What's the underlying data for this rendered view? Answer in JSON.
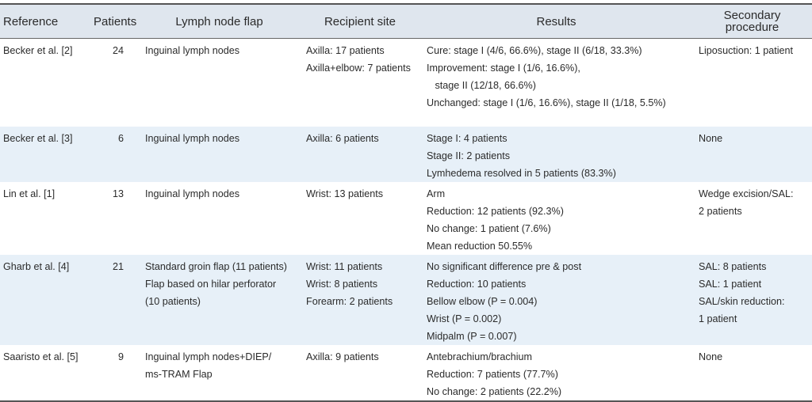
{
  "table": {
    "columns": [
      "Reference",
      "Patients",
      "Lymph node flap",
      "Recipient site",
      "Results",
      "Secondary procedure"
    ],
    "rows": [
      [
        "Becker et al. [2]",
        24,
        [
          "Inguinal lymph nodes"
        ],
        [
          "Axilla: 17 patients",
          "Axilla+elbow: 7 patients"
        ],
        [
          "Cure: stage I (4/6, 66.6%), stage II (6/18, 33.3%)",
          "Improvement: stage I (1/6, 16.6%),",
          "   stage II (12/18, 66.6%)",
          "Unchanged: stage I (1/6, 16.6%), stage II (1/18, 5.5%)"
        ],
        [
          "Liposuction: 1 patient"
        ]
      ],
      [
        "Becker et al. [3]",
        6,
        [
          "Inguinal lymph nodes"
        ],
        [
          "Axilla: 6 patients"
        ],
        [
          "Stage I: 4 patients",
          "Stage II: 2 patients",
          "Lymhedema resolved in 5 patients (83.3%)"
        ],
        [
          "None"
        ]
      ],
      [
        "Lin et al. [1]",
        13,
        [
          "Inguinal lymph nodes"
        ],
        [
          "Wrist: 13 patients"
        ],
        [
          "Arm",
          "Reduction: 12 patients (92.3%)",
          "No change: 1 patient (7.6%)",
          "Mean reduction 50.55%"
        ],
        [
          "Wedge excision/SAL:",
          "2 patients"
        ]
      ],
      [
        "Gharb et al. [4]",
        21,
        [
          "Standard groin flap (11 patients)",
          "Flap based on hilar perforator",
          "(10 patients)"
        ],
        [
          "Wrist: 11 patients",
          "Wrist: 8 patients",
          "Forearm: 2 patients"
        ],
        [
          "No significant difference pre & post",
          "Reduction: 10 patients",
          "Bellow elbow (P = 0.004)",
          "Wrist (P = 0.002)",
          "Midpalm (P = 0.007)"
        ],
        [
          "SAL: 8 patients",
          "SAL: 1 patient",
          "SAL/skin reduction:",
          "1 patient"
        ]
      ],
      [
        "Saaristo et al. [5]",
        9,
        [
          "Inguinal lymph nodes+DIEP/",
          "ms-TRAM Flap"
        ],
        [
          "Axilla: 9 patients"
        ],
        [
          "Antebrachium/brachium",
          "Reduction: 7 patients (77.7%)",
          "No change: 2 patients (22.2%)"
        ],
        [
          "None"
        ]
      ]
    ]
  }
}
